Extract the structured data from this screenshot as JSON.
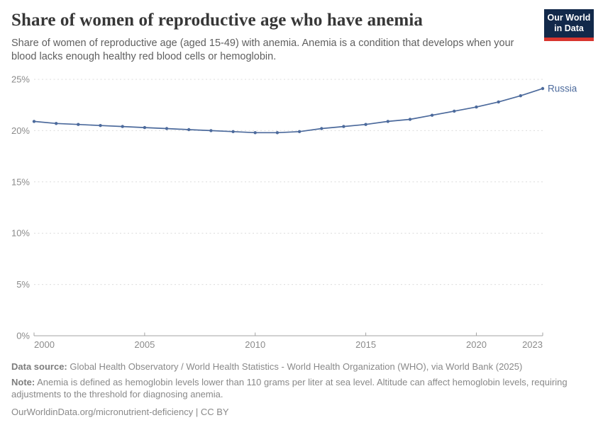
{
  "header": {
    "title": "Share of women of reproductive age who have anemia",
    "subtitle": "Share of women of reproductive age (aged 15-49) with anemia. Anemia is a condition that develops when your blood lacks enough healthy red blood cells or hemoglobin.",
    "logo": {
      "line1": "Our World",
      "line2": "in Data"
    }
  },
  "chart_data": {
    "type": "line",
    "title": "Share of women of reproductive age who have anemia",
    "x": [
      2000,
      2001,
      2002,
      2003,
      2004,
      2005,
      2006,
      2007,
      2008,
      2009,
      2010,
      2011,
      2012,
      2013,
      2014,
      2015,
      2016,
      2017,
      2018,
      2019,
      2020,
      2021,
      2022,
      2023
    ],
    "series": [
      {
        "name": "Russia",
        "color": "#4c6a9c",
        "values": [
          20.9,
          20.7,
          20.6,
          20.5,
          20.4,
          20.3,
          20.2,
          20.1,
          20.0,
          19.9,
          19.8,
          19.8,
          19.9,
          20.2,
          20.4,
          20.6,
          20.9,
          21.1,
          21.5,
          21.9,
          22.3,
          22.8,
          23.4,
          24.1
        ]
      }
    ],
    "xlabel": "",
    "ylabel": "",
    "ylim": [
      0,
      25
    ],
    "yticks": [
      0,
      5,
      10,
      15,
      20,
      25
    ],
    "ytick_suffix": "%",
    "xticks": [
      2000,
      2005,
      2010,
      2015,
      2020,
      2023
    ],
    "grid": "horizontal-dashed",
    "legend_position": "end-of-line-label",
    "end_label": "Russia"
  },
  "colors": {
    "line": "#4c6a9c",
    "axis_label": "#8b8b8b",
    "gridline": "#dcdcdc",
    "axis_line": "#a3a3a3",
    "logo_bg": "#12294a",
    "logo_stripe": "#d8352e"
  },
  "footer": {
    "datasource_label": "Data source:",
    "datasource_text": " Global Health Observatory / World Health Statistics - World Health Organization (WHO), via World Bank (2025)",
    "note_label": "Note:",
    "note_text": " Anemia is defined as hemoglobin levels lower than 110 grams per liter at sea level. Altitude can affect hemoglobin levels, requiring adjustments to the threshold for diagnosing anemia.",
    "link": "OurWorldinData.org/micronutrient-deficiency | CC BY"
  }
}
